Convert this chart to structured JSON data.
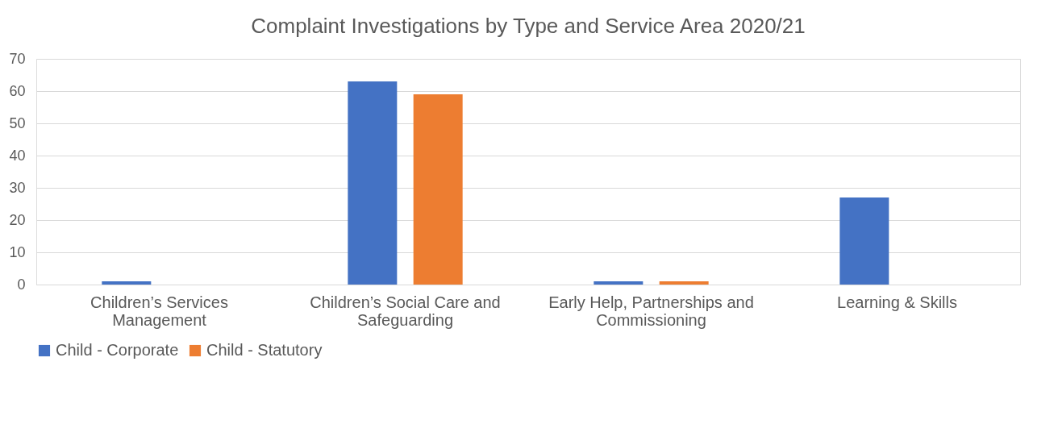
{
  "chart_data": {
    "type": "bar",
    "title": "Complaint Investigations by Type and Service Area 2020/21",
    "categories": [
      "Children’s Services Management",
      "Children’s Social Care and Safeguarding",
      "Early Help, Partnerships and Commissioning",
      "Learning & Skills"
    ],
    "series": [
      {
        "name": "Child - Corporate",
        "color": "#4472c4",
        "values": [
          1,
          63,
          1,
          27
        ]
      },
      {
        "name": "Child - Statutory",
        "color": "#ed7d31",
        "values": [
          0,
          59,
          1,
          0
        ]
      }
    ],
    "ylim": [
      0,
      70
    ],
    "yticks": [
      0,
      10,
      20,
      30,
      40,
      50,
      60,
      70
    ],
    "grid": "y",
    "legend": "bottom"
  }
}
